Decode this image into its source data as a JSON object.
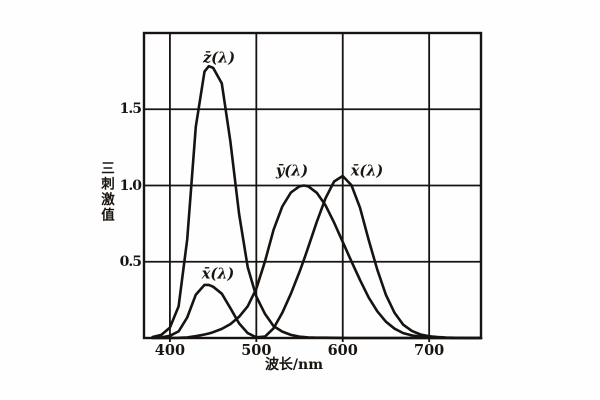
{
  "figure": {
    "background": "#fefefe",
    "ink_color": "#171310"
  },
  "chart_data": {
    "type": "line",
    "title": "",
    "xlabel": "波长/nm",
    "ylabel": "三刺激值",
    "xlim": [
      370,
      760
    ],
    "ylim": [
      0,
      2.0
    ],
    "grid": true,
    "legend_position": "none",
    "xticks": [
      400,
      500,
      600,
      700
    ],
    "yticks": [
      0.5,
      1.0,
      1.5
    ],
    "xtick_labels": [
      "400",
      "500",
      "600",
      "700"
    ],
    "ytick_labels": [
      "0.5",
      "1.0",
      "1.5"
    ],
    "x": [
      380,
      390,
      400,
      410,
      420,
      430,
      440,
      445,
      450,
      460,
      470,
      480,
      490,
      500,
      510,
      520,
      530,
      540,
      550,
      555,
      560,
      570,
      580,
      590,
      600,
      610,
      620,
      630,
      640,
      650,
      660,
      670,
      680,
      690,
      700,
      710,
      720,
      730,
      740,
      750,
      760
    ],
    "series": [
      {
        "name": "zbar",
        "label": "z̄(λ)",
        "peak": {
          "wavelength": 445,
          "value": 1.78
        },
        "values": [
          0.0065,
          0.0201,
          0.0679,
          0.2074,
          0.6456,
          1.3856,
          1.7471,
          1.7826,
          1.7721,
          1.6692,
          1.2876,
          0.813,
          0.4652,
          0.272,
          0.1582,
          0.0782,
          0.0422,
          0.0203,
          0.0087,
          0.006,
          0.0039,
          0.0021,
          0.0017,
          0.0011,
          0.0008,
          0.0003,
          0.0002,
          0.0,
          0.0,
          0.0,
          0.0,
          0.0,
          0.0,
          0.0,
          0.0,
          0.0,
          0.0,
          0.0,
          0.0,
          0.0,
          0.0
        ]
      },
      {
        "name": "xbar",
        "label": "x̄(λ)",
        "peak": {
          "wavelength": 600,
          "value": 1.0622
        },
        "secondary_peak": {
          "wavelength": 445,
          "value": 0.348
        },
        "values": [
          0.0014,
          0.0042,
          0.0143,
          0.0435,
          0.1344,
          0.2839,
          0.3483,
          0.3481,
          0.3362,
          0.2908,
          0.1954,
          0.0956,
          0.032,
          0.0049,
          0.0093,
          0.0633,
          0.1655,
          0.2904,
          0.4334,
          0.5126,
          0.5945,
          0.7621,
          0.9163,
          1.0263,
          1.0622,
          1.0026,
          0.8544,
          0.6424,
          0.4479,
          0.2835,
          0.1649,
          0.0874,
          0.0468,
          0.0227,
          0.0114,
          0.0058,
          0.0029,
          0.0014,
          0.0007,
          0.0003,
          0.0002
        ]
      },
      {
        "name": "ybar",
        "label": "ȳ(λ)",
        "peak": {
          "wavelength": 555,
          "value": 1.0
        },
        "values": [
          0.0,
          0.0001,
          0.0004,
          0.0012,
          0.004,
          0.0116,
          0.023,
          0.0298,
          0.038,
          0.06,
          0.091,
          0.139,
          0.208,
          0.323,
          0.503,
          0.71,
          0.862,
          0.954,
          0.995,
          1.0,
          0.995,
          0.952,
          0.87,
          0.757,
          0.631,
          0.503,
          0.381,
          0.265,
          0.175,
          0.107,
          0.061,
          0.032,
          0.017,
          0.0082,
          0.0041,
          0.0021,
          0.001,
          0.0005,
          0.0003,
          0.0001,
          0.0001
        ]
      }
    ],
    "curve_labels": [
      {
        "id": "zbar-peak",
        "text": "z̄(λ)"
      },
      {
        "id": "xbar-short-lobe",
        "text": "x̄(λ)"
      },
      {
        "id": "ybar-peak",
        "text": "ȳ(λ)"
      },
      {
        "id": "xbar-long-lobe",
        "text": "x̄(λ)"
      }
    ]
  }
}
